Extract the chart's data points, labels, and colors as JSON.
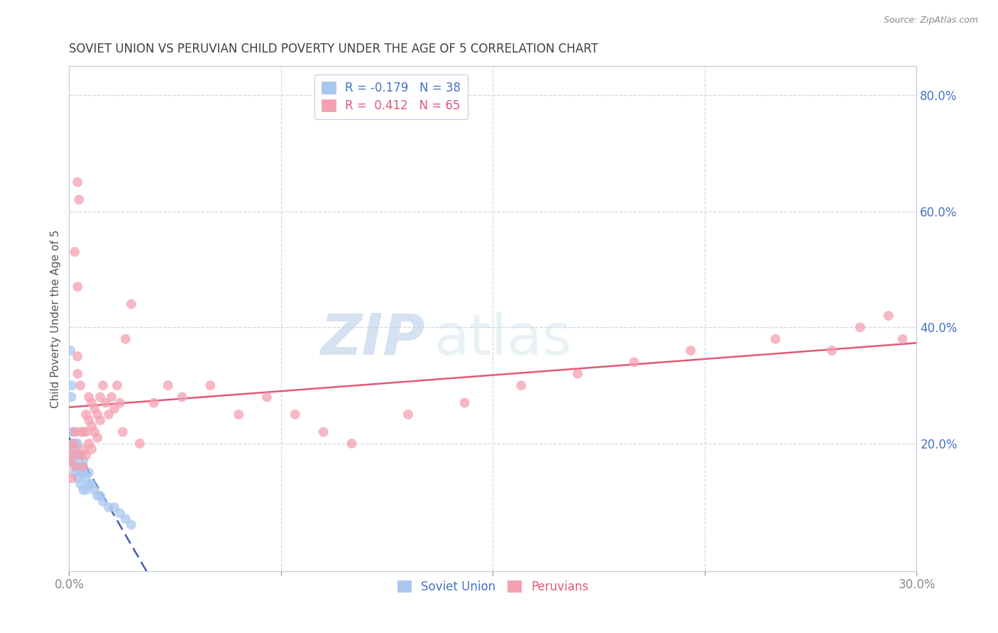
{
  "title": "SOVIET UNION VS PERUVIAN CHILD POVERTY UNDER THE AGE OF 5 CORRELATION CHART",
  "source": "Source: ZipAtlas.com",
  "ylabel": "Child Poverty Under the Age of 5",
  "xlim": [
    0.0,
    0.3
  ],
  "ylim": [
    -0.02,
    0.85
  ],
  "xticks": [
    0.0,
    0.075,
    0.15,
    0.225,
    0.3
  ],
  "xticklabels": [
    "0.0%",
    "",
    "",
    "",
    "30.0%"
  ],
  "yticks_right": [
    0.2,
    0.4,
    0.6,
    0.8
  ],
  "ytick_labels_right": [
    "20.0%",
    "40.0%",
    "60.0%",
    "80.0%"
  ],
  "soviet_color": "#a8c8f0",
  "peruvian_color": "#f4a0b0",
  "soviet_line_color": "#2040a0",
  "peruvian_line_color": "#e05878",
  "legend_R_soviet": "-0.179",
  "legend_N_soviet": "38",
  "legend_R_peruvian": "0.412",
  "legend_N_peruvian": "65",
  "watermark_zip": "ZIP",
  "watermark_atlas": "atlas",
  "grid_color": "#d0d8e8",
  "soviet_x": [
    0.0005,
    0.0008,
    0.001,
    0.001,
    0.0012,
    0.0015,
    0.0015,
    0.002,
    0.002,
    0.002,
    0.0022,
    0.0025,
    0.003,
    0.003,
    0.003,
    0.003,
    0.0032,
    0.004,
    0.004,
    0.004,
    0.0045,
    0.005,
    0.005,
    0.005,
    0.006,
    0.006,
    0.007,
    0.007,
    0.008,
    0.009,
    0.01,
    0.011,
    0.012,
    0.014,
    0.016,
    0.018,
    0.02,
    0.022
  ],
  "soviet_y": [
    0.36,
    0.28,
    0.3,
    0.22,
    0.19,
    0.2,
    0.17,
    0.22,
    0.18,
    0.15,
    0.2,
    0.16,
    0.2,
    0.18,
    0.16,
    0.14,
    0.18,
    0.18,
    0.15,
    0.13,
    0.16,
    0.17,
    0.15,
    0.12,
    0.14,
    0.12,
    0.15,
    0.13,
    0.13,
    0.12,
    0.11,
    0.11,
    0.1,
    0.09,
    0.09,
    0.08,
    0.07,
    0.06
  ],
  "peruvian_x": [
    0.0005,
    0.001,
    0.001,
    0.0015,
    0.002,
    0.002,
    0.002,
    0.003,
    0.003,
    0.003,
    0.0035,
    0.004,
    0.004,
    0.004,
    0.005,
    0.005,
    0.005,
    0.006,
    0.006,
    0.006,
    0.007,
    0.007,
    0.007,
    0.008,
    0.008,
    0.008,
    0.009,
    0.009,
    0.01,
    0.01,
    0.011,
    0.011,
    0.012,
    0.013,
    0.014,
    0.015,
    0.016,
    0.017,
    0.018,
    0.019,
    0.02,
    0.022,
    0.025,
    0.03,
    0.035,
    0.04,
    0.05,
    0.06,
    0.07,
    0.08,
    0.09,
    0.1,
    0.12,
    0.14,
    0.16,
    0.18,
    0.2,
    0.22,
    0.25,
    0.27,
    0.28,
    0.29,
    0.295,
    0.002,
    0.003
  ],
  "peruvian_y": [
    0.17,
    0.18,
    0.14,
    0.2,
    0.16,
    0.22,
    0.19,
    0.35,
    0.32,
    0.65,
    0.62,
    0.3,
    0.22,
    0.18,
    0.22,
    0.19,
    0.16,
    0.25,
    0.22,
    0.18,
    0.28,
    0.24,
    0.2,
    0.27,
    0.23,
    0.19,
    0.26,
    0.22,
    0.25,
    0.21,
    0.28,
    0.24,
    0.3,
    0.27,
    0.25,
    0.28,
    0.26,
    0.3,
    0.27,
    0.22,
    0.38,
    0.44,
    0.2,
    0.27,
    0.3,
    0.28,
    0.3,
    0.25,
    0.28,
    0.25,
    0.22,
    0.2,
    0.25,
    0.27,
    0.3,
    0.32,
    0.34,
    0.36,
    0.38,
    0.36,
    0.4,
    0.42,
    0.38,
    0.53,
    0.47
  ]
}
